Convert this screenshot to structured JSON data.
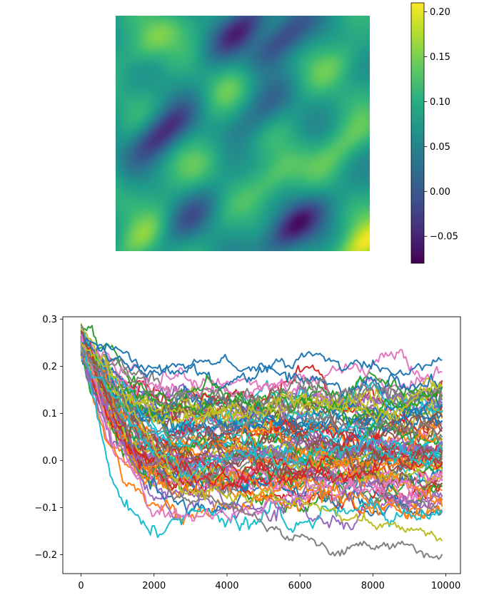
{
  "chart_data": [
    {
      "type": "heatmap",
      "title": "",
      "colormap": "viridis",
      "color_range": [
        -0.08,
        0.21
      ],
      "axes_visible": false,
      "colorbar": {
        "ticks": [
          -0.05,
          0.0,
          0.05,
          0.1,
          0.15,
          0.2
        ],
        "tick_labels": [
          "−0.05",
          "0.00",
          "0.05",
          "0.10",
          "0.15",
          "0.20"
        ]
      },
      "features": [
        {
          "x": 0.15,
          "y": 0.1,
          "value": 0.15
        },
        {
          "x": 0.5,
          "y": 0.05,
          "value": -0.04
        },
        {
          "x": 0.65,
          "y": 0.1,
          "value": -0.03
        },
        {
          "x": 0.88,
          "y": 0.2,
          "value": 0.13
        },
        {
          "x": 0.45,
          "y": 0.3,
          "value": 0.12
        },
        {
          "x": 0.18,
          "y": 0.5,
          "value": -0.05
        },
        {
          "x": 0.58,
          "y": 0.4,
          "value": 0.02
        },
        {
          "x": 0.9,
          "y": 0.55,
          "value": 0.14
        },
        {
          "x": 0.62,
          "y": 0.7,
          "value": 0.15
        },
        {
          "x": 0.35,
          "y": 0.62,
          "value": 0.12
        },
        {
          "x": 0.08,
          "y": 0.75,
          "value": 0.1
        },
        {
          "x": 0.3,
          "y": 0.85,
          "value": 0.01
        },
        {
          "x": 0.7,
          "y": 0.9,
          "value": -0.07
        },
        {
          "x": 0.98,
          "y": 0.98,
          "value": 0.2
        },
        {
          "x": 0.1,
          "y": 0.95,
          "value": 0.14
        },
        {
          "x": 0.95,
          "y": 0.85,
          "value": 0.09
        }
      ]
    },
    {
      "type": "line",
      "title": "",
      "xlabel": "",
      "ylabel": "",
      "xlim": [
        -500,
        10400
      ],
      "ylim": [
        -0.24,
        0.305
      ],
      "grid": false,
      "legend": false,
      "x_ticks": [
        0,
        2000,
        4000,
        6000,
        8000,
        10000
      ],
      "y_ticks": [
        -0.2,
        -0.1,
        0.0,
        0.1,
        0.2,
        0.3
      ],
      "x_tick_labels": [
        "0",
        "2000",
        "4000",
        "6000",
        "8000",
        "10000"
      ],
      "y_tick_labels": [
        "−0.2",
        "−0.1",
        "0.0",
        "0.1",
        "0.2",
        "0.3"
      ],
      "color_cycle": [
        "#1f77b4",
        "#ff7f0e",
        "#2ca02c",
        "#d62728",
        "#9467bd",
        "#8c564b",
        "#e377c2",
        "#7f7f7f",
        "#bcbd22",
        "#17becf"
      ],
      "x_end": 9900,
      "n_series": 80,
      "series": [
        {
          "color": "#1f77b4",
          "start": 0.25,
          "end": 0.21,
          "floor_x": 1500,
          "floor_y": 0.2,
          "note_path": [
            [
              0,
              0.25
            ],
            [
              1500,
              0.21
            ],
            [
              2000,
              0.2
            ],
            [
              3000,
              0.205
            ],
            [
              4000,
              0.23
            ],
            [
              5000,
              0.21
            ],
            [
              6000,
              0.235
            ],
            [
              7000,
              0.21
            ],
            [
              8000,
              0.2
            ],
            [
              9000,
              0.195
            ],
            [
              9900,
              0.21
            ]
          ]
        },
        {
          "color": "#7f7f7f",
          "start": 0.25,
          "end": -0.205,
          "note_path": [
            [
              0,
              0.25
            ],
            [
              1000,
              0.17
            ],
            [
              2000,
              0.04
            ],
            [
              2600,
              -0.06
            ],
            [
              3500,
              -0.08
            ],
            [
              4500,
              -0.11
            ],
            [
              5500,
              -0.135
            ],
            [
              6500,
              -0.16
            ],
            [
              7500,
              -0.17
            ],
            [
              8500,
              -0.18
            ],
            [
              9900,
              -0.205
            ]
          ]
        },
        {
          "color": "#bcbd22",
          "start": 0.25,
          "end": -0.155,
          "note_path": [
            [
              0,
              0.25
            ],
            [
              1000,
              0.16
            ],
            [
              2000,
              0.03
            ],
            [
              2700,
              -0.06
            ],
            [
              4000,
              -0.08
            ],
            [
              5500,
              -0.09
            ],
            [
              7000,
              -0.11
            ],
            [
              8500,
              -0.13
            ],
            [
              9900,
              -0.155
            ]
          ]
        }
      ]
    }
  ]
}
